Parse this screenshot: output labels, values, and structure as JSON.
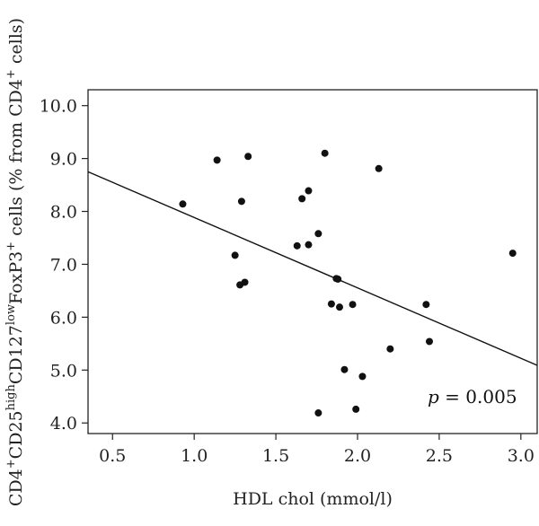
{
  "chart_data": {
    "type": "scatter",
    "xlabel": "HDL chol (mmol/l)",
    "ylabel": {
      "parts": [
        {
          "t": "CD4",
          "s": "base"
        },
        {
          "t": "+",
          "s": "sup"
        },
        {
          "t": "CD25",
          "s": "base"
        },
        {
          "t": "high",
          "s": "sup"
        },
        {
          "t": "CD127",
          "s": "base"
        },
        {
          "t": "low",
          "s": "sup"
        },
        {
          "t": "FoxP3",
          "s": "base"
        },
        {
          "t": "+",
          "s": "sup"
        },
        {
          "t": " cells (% from CD4",
          "s": "base"
        },
        {
          "t": "+",
          "s": "sup"
        },
        {
          "t": " cells)",
          "s": "base"
        }
      ]
    },
    "xlim": [
      0.35,
      3.1
    ],
    "ylim": [
      3.8,
      10.3
    ],
    "xticks": [
      {
        "v": 0.5,
        "label": "0.5"
      },
      {
        "v": 1.0,
        "label": "1.0"
      },
      {
        "v": 1.5,
        "label": "1.5"
      },
      {
        "v": 2.0,
        "label": "2.0"
      },
      {
        "v": 2.5,
        "label": "2.5"
      },
      {
        "v": 3.0,
        "label": "3.0"
      }
    ],
    "yticks": [
      {
        "v": 4.0,
        "label": "4.0"
      },
      {
        "v": 5.0,
        "label": "5.0"
      },
      {
        "v": 6.0,
        "label": "6.0"
      },
      {
        "v": 7.0,
        "label": "7.0"
      },
      {
        "v": 8.0,
        "label": "8.0"
      },
      {
        "v": 9.0,
        "label": "9.0"
      },
      {
        "v": 10.0,
        "label": "10.0"
      }
    ],
    "points": [
      {
        "x": 0.93,
        "y": 8.14
      },
      {
        "x": 1.14,
        "y": 8.97
      },
      {
        "x": 1.25,
        "y": 7.17
      },
      {
        "x": 1.28,
        "y": 6.61
      },
      {
        "x": 1.29,
        "y": 8.19
      },
      {
        "x": 1.31,
        "y": 6.66
      },
      {
        "x": 1.33,
        "y": 9.04
      },
      {
        "x": 1.63,
        "y": 7.35
      },
      {
        "x": 1.66,
        "y": 8.24
      },
      {
        "x": 1.7,
        "y": 8.39
      },
      {
        "x": 1.7,
        "y": 7.37
      },
      {
        "x": 1.76,
        "y": 7.58
      },
      {
        "x": 1.76,
        "y": 4.19
      },
      {
        "x": 1.8,
        "y": 9.1
      },
      {
        "x": 1.84,
        "y": 6.25
      },
      {
        "x": 1.87,
        "y": 6.73
      },
      {
        "x": 1.88,
        "y": 6.72
      },
      {
        "x": 1.89,
        "y": 6.19
      },
      {
        "x": 1.92,
        "y": 5.01
      },
      {
        "x": 1.97,
        "y": 6.24
      },
      {
        "x": 1.99,
        "y": 4.26
      },
      {
        "x": 2.03,
        "y": 4.88
      },
      {
        "x": 2.13,
        "y": 8.81
      },
      {
        "x": 2.2,
        "y": 5.4
      },
      {
        "x": 2.42,
        "y": 6.24
      },
      {
        "x": 2.44,
        "y": 5.54
      },
      {
        "x": 2.95,
        "y": 7.21
      }
    ],
    "regression": {
      "x": [
        0.35,
        3.1
      ],
      "y": [
        8.75,
        5.09
      ]
    },
    "annotation": {
      "italic": "p",
      "text": " = 0.005"
    },
    "grid": false,
    "legend": "none"
  }
}
